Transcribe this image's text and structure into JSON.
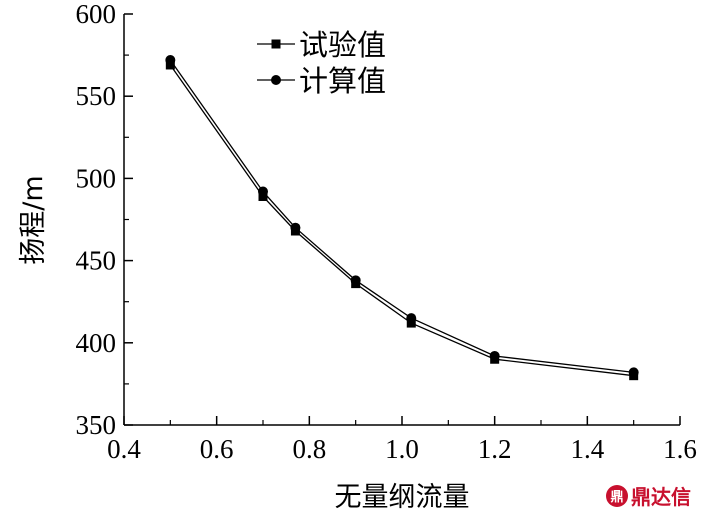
{
  "chart_data": {
    "type": "line",
    "xlabel": "无量纲流量",
    "ylabel": "扬程/m",
    "xlim": [
      0.4,
      1.6
    ],
    "ylim": [
      350,
      600
    ],
    "xticks": [
      "0.4",
      "0.6",
      "0.8",
      "1.0",
      "1.2",
      "1.4",
      "1.6"
    ],
    "yticks": [
      "350",
      "400",
      "450",
      "500",
      "550",
      "600"
    ],
    "legend_position": "top-center",
    "grid": false,
    "series": [
      {
        "name": "试验值",
        "marker": "square",
        "color": "#000000",
        "x": [
          0.5,
          0.7,
          0.77,
          0.9,
          1.02,
          1.2,
          1.5
        ],
        "y": [
          569,
          489,
          468,
          436,
          412,
          390,
          380
        ]
      },
      {
        "name": "计算值",
        "marker": "circle",
        "color": "#000000",
        "x": [
          0.5,
          0.7,
          0.77,
          0.9,
          1.02,
          1.2,
          1.5
        ],
        "y": [
          572,
          492,
          470,
          438,
          415,
          392,
          382
        ]
      }
    ]
  },
  "watermark": {
    "icon": "logo-icon",
    "icon_text": "鼎",
    "text": "鼎达信"
  }
}
